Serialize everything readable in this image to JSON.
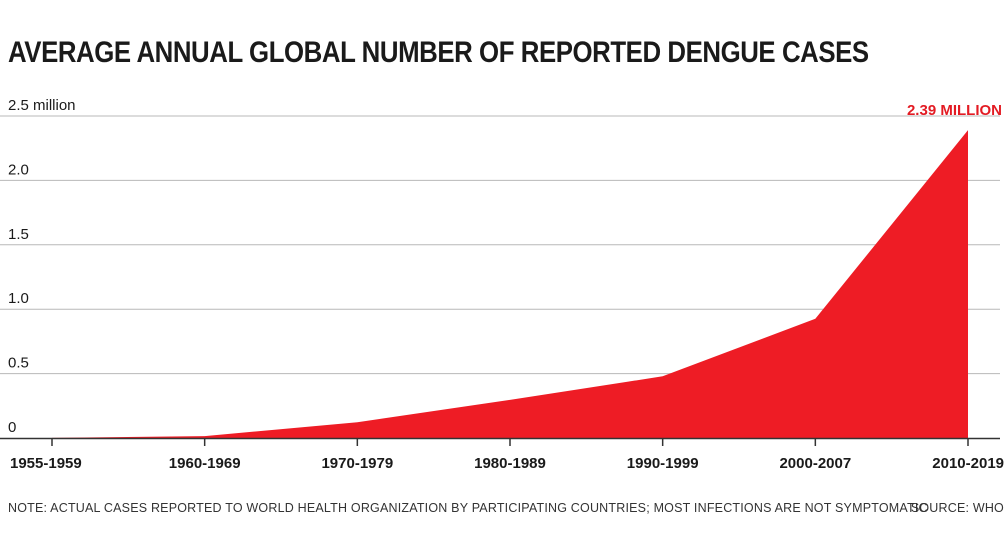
{
  "colors": {
    "area": "#ee1c25",
    "callout": "#e31b23",
    "grid": "#b8b8b8",
    "axis": "#333333",
    "text": "#1a1a1a"
  },
  "note": "NOTE: ACTUAL CASES REPORTED TO WORLD HEALTH ORGANIZATION BY PARTICIPATING COUNTRIES; MOST INFECTIONS ARE NOT SYMPTOMATIC",
  "source": "SOURCE: WHO",
  "chart_data": {
    "type": "area",
    "title": "AVERAGE ANNUAL GLOBAL NUMBER OF REPORTED DENGUE CASES",
    "categories": [
      "1955-1959",
      "1960-1969",
      "1970-1979",
      "1980-1989",
      "1990-1999",
      "2000-2007",
      "2010-2019"
    ],
    "series": [
      {
        "values": [
          0.001,
          0.015,
          0.122,
          0.296,
          0.479,
          0.926,
          2.39
        ]
      }
    ],
    "ylim": [
      0,
      2.5
    ],
    "yticks": [
      0,
      0.5,
      1.0,
      1.5,
      2.0,
      2.5
    ],
    "ytick_labels": [
      "0",
      "0.5",
      "1.0",
      "1.5",
      "2.0",
      "2.5 million"
    ],
    "grid": true,
    "annotation": {
      "text": "2.39 MILLION",
      "category": "2010-2019",
      "value": 2.39
    }
  }
}
